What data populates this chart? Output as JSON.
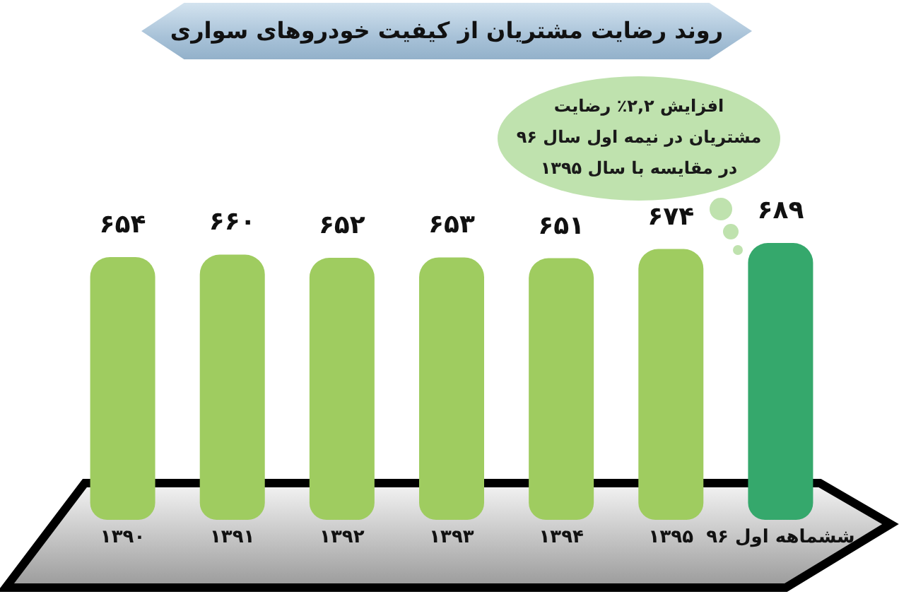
{
  "chart_data": {
    "type": "bar",
    "title": "روند رضایت مشتریان از کیفیت خودروهای سواری",
    "categories": [
      "۱۳۹۰",
      "۱۳۹۱",
      "۱۳۹۲",
      "۱۳۹۳",
      "۱۳۹۴",
      "۱۳۹۵",
      "ششماهه اول ۹۶"
    ],
    "values": [
      654,
      660,
      652,
      653,
      651,
      674,
      689
    ],
    "colors": [
      "#9fcc60",
      "#9fcc60",
      "#9fcc60",
      "#9fcc60",
      "#9fcc60",
      "#9fcc60",
      "#35a86c"
    ],
    "value_labels": [
      "۶۵۴",
      "۶۶۰",
      "۶۵۲",
      "۶۵۳",
      "۶۵۱",
      "۶۷۴",
      "۶۸۹"
    ],
    "annotations": [
      "افزایش ۲,۲٪ رضایت\nمشتریان در نیمه اول سال ۹۶\nدر مقایسه با سال ۱۳۹۵"
    ],
    "tick_labels": "x"
  }
}
